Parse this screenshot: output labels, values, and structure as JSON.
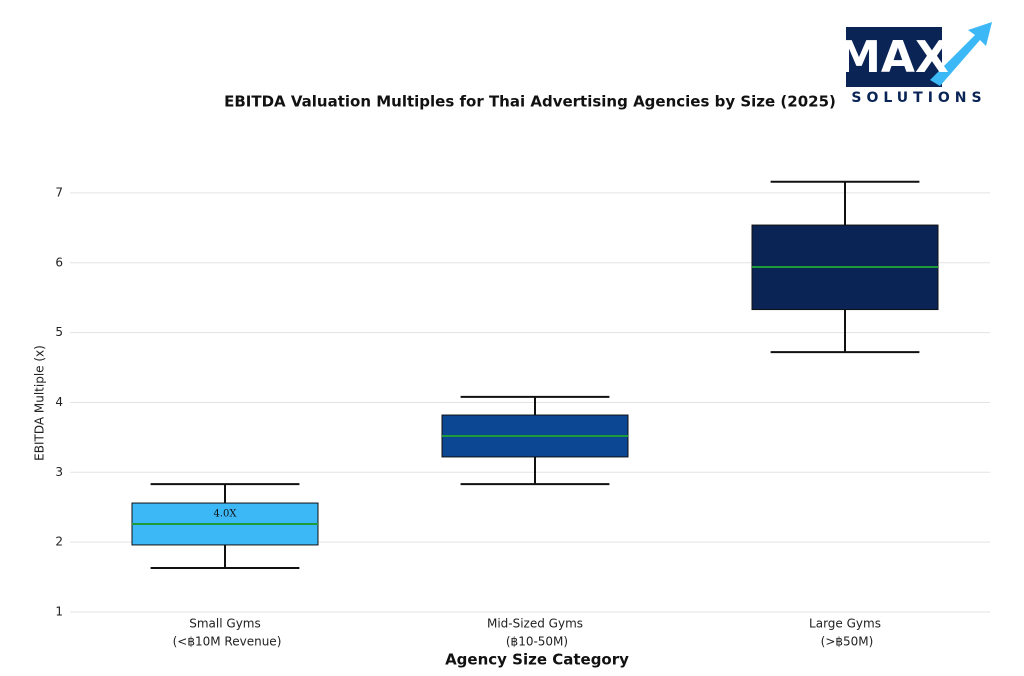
{
  "logo": {
    "text": "MAX",
    "subtext": "SOLUTIONS"
  },
  "chart_data": {
    "type": "box",
    "title": "EBITDA Valuation Multiples for Thai Advertising Agencies by Size (2025)",
    "xlabel": "Agency Size Category",
    "ylabel": "EBITDA Multiple (x)",
    "categories": [
      [
        "Small Gyms",
        "(<฿10M Revenue)"
      ],
      [
        "Mid-Sized Gyms",
        "(฿10-50M)"
      ],
      [
        "Large Gyms",
        "(>฿50M)"
      ]
    ],
    "colors": [
      "#3bb8f5",
      "#0b4793",
      "#0a2456"
    ],
    "median_color": "#1f9a3a",
    "stats": [
      {
        "min": 1.63,
        "q1": 1.96,
        "median": 2.26,
        "q3": 2.56,
        "max": 2.83
      },
      {
        "min": 2.83,
        "q1": 3.22,
        "median": 3.52,
        "q3": 3.82,
        "max": 4.08
      },
      {
        "min": 4.72,
        "q1": 5.33,
        "median": 5.94,
        "q3": 6.54,
        "max": 7.16
      }
    ],
    "annotations": [
      {
        "text": "4.0X"
      }
    ],
    "ylim": [
      1,
      7.5
    ],
    "yticks": [
      1,
      2,
      3,
      4,
      5,
      6,
      7
    ],
    "grid": true
  }
}
